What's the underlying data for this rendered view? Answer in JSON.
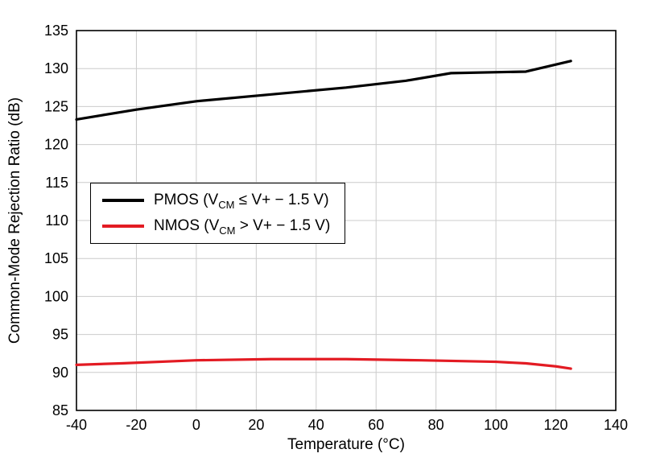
{
  "chart_data": {
    "type": "line",
    "title": "",
    "xlabel": "Temperature (°C)",
    "ylabel": "Common-Mode Rejection Ratio (dB)",
    "xlim": [
      -40,
      140
    ],
    "ylim": [
      85,
      135
    ],
    "x_ticks": [
      -40,
      -20,
      0,
      20,
      40,
      60,
      80,
      100,
      120,
      140
    ],
    "y_ticks": [
      85,
      90,
      95,
      100,
      105,
      110,
      115,
      120,
      125,
      130,
      135
    ],
    "grid": true,
    "grid_color": "#cccccc",
    "border_color": "#000000",
    "legend_position": "middle-left",
    "series": [
      {
        "name": "PMOS (VCM ≤ V+ − 1.5 V)",
        "color": "#000000",
        "x": [
          -40,
          -20,
          0,
          25,
          50,
          70,
          85,
          110,
          125
        ],
        "y": [
          123.3,
          124.6,
          125.7,
          126.6,
          127.5,
          128.4,
          129.4,
          129.6,
          131.0
        ]
      },
      {
        "name": "NMOS (VCM > V+ − 1.5 V)",
        "color": "#e31b23",
        "x": [
          -40,
          -25,
          0,
          25,
          50,
          75,
          100,
          110,
          120,
          125
        ],
        "y": [
          91.0,
          91.2,
          91.6,
          91.75,
          91.75,
          91.6,
          91.4,
          91.2,
          90.8,
          90.5
        ]
      }
    ],
    "legend": [
      {
        "prefix": "PMOS (V",
        "sub": "CM",
        "suffix": " ≤ V+ − 1.5 V)",
        "color": "#000000"
      },
      {
        "prefix": "NMOS (V",
        "sub": "CM",
        "suffix": " > V+ − 1.5 V)",
        "color": "#e31b23"
      }
    ]
  }
}
